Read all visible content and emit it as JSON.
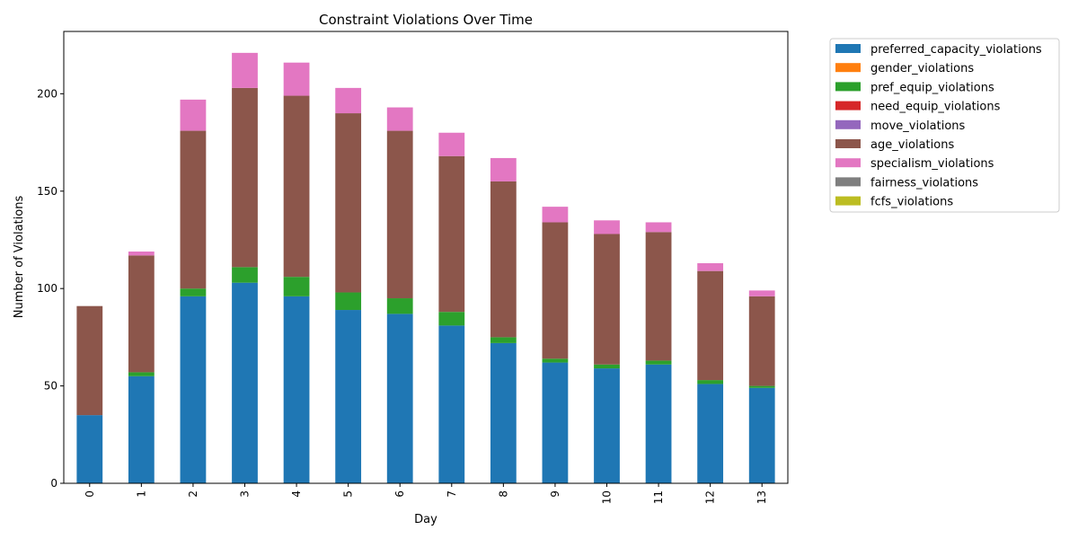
{
  "chart_data": {
    "type": "bar",
    "stacked": true,
    "title": "Constraint Violations Over Time",
    "xlabel": "Day",
    "ylabel": "Number of Violations",
    "ylim": [
      0,
      232
    ],
    "yticks": [
      0,
      50,
      100,
      150,
      200
    ],
    "categories": [
      "0",
      "1",
      "2",
      "3",
      "4",
      "5",
      "6",
      "7",
      "8",
      "9",
      "10",
      "11",
      "12",
      "13"
    ],
    "legend_position": "outside-right",
    "grid": false,
    "series": [
      {
        "name": "preferred_capacity_violations",
        "color": "#1f77b4",
        "values": [
          35,
          55,
          96,
          103,
          96,
          89,
          87,
          81,
          72,
          62,
          59,
          61,
          51,
          49
        ]
      },
      {
        "name": "gender_violations",
        "color": "#ff7f0e",
        "values": [
          0,
          0,
          0,
          0,
          0,
          0,
          0,
          0,
          0,
          0,
          0,
          0,
          0,
          0
        ]
      },
      {
        "name": "pref_equip_violations",
        "color": "#2ca02c",
        "values": [
          0,
          2,
          4,
          8,
          10,
          9,
          8,
          7,
          3,
          2,
          2,
          2,
          2,
          1
        ]
      },
      {
        "name": "need_equip_violations",
        "color": "#d62728",
        "values": [
          0,
          0,
          0,
          0,
          0,
          0,
          0,
          0,
          0,
          0,
          0,
          0,
          0,
          0
        ]
      },
      {
        "name": "move_violations",
        "color": "#9467bd",
        "values": [
          0,
          0,
          0,
          0,
          0,
          0,
          0,
          0,
          0,
          0,
          0,
          0,
          0,
          0
        ]
      },
      {
        "name": "age_violations",
        "color": "#8c564b",
        "values": [
          56,
          60,
          81,
          92,
          93,
          92,
          86,
          80,
          80,
          70,
          67,
          66,
          56,
          46
        ]
      },
      {
        "name": "specialism_violations",
        "color": "#e377c2",
        "values": [
          0,
          2,
          16,
          18,
          17,
          13,
          12,
          12,
          12,
          8,
          7,
          5,
          4,
          3
        ]
      },
      {
        "name": "fairness_violations",
        "color": "#7f7f7f",
        "values": [
          0,
          0,
          0,
          0,
          0,
          0,
          0,
          0,
          0,
          0,
          0,
          0,
          0,
          0
        ]
      },
      {
        "name": "fcfs_violations",
        "color": "#bcbd22",
        "values": [
          0,
          0,
          0,
          0,
          0,
          0,
          0,
          0,
          0,
          0,
          0,
          0,
          0,
          0
        ]
      }
    ]
  }
}
